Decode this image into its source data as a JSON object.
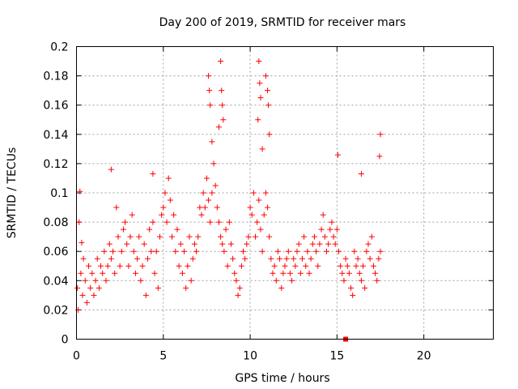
{
  "chart_data": {
    "type": "scatter",
    "title": "Day 200 of 2019, SRMTID for receiver mars",
    "xlabel": "GPS time / hours",
    "ylabel": "SRMTID / TECUs",
    "xlim": [
      0,
      24
    ],
    "ylim": [
      0,
      0.2
    ],
    "xticks": [
      0,
      5,
      10,
      15,
      20
    ],
    "xtick_labels": [
      "0",
      "5",
      "10",
      "15",
      "20"
    ],
    "yticks": [
      0,
      0.02,
      0.04,
      0.06,
      0.08,
      0.1,
      0.12,
      0.14,
      0.16,
      0.18,
      0.2
    ],
    "ytick_labels": [
      "0",
      "0.02",
      "0.04",
      "0.06",
      "0.08",
      "0.1",
      "0.12",
      "0.14",
      "0.16",
      "0.18",
      "0.2"
    ],
    "grid": true,
    "marker": "+",
    "color": "#ff0000",
    "series": [
      {
        "name": "SRMTID",
        "x": [
          0.05,
          0.1,
          0.15,
          0.2,
          0.25,
          0.3,
          0.35,
          0.4,
          0.5,
          0.6,
          0.7,
          0.8,
          0.9,
          1.0,
          1.1,
          1.2,
          1.3,
          1.4,
          1.5,
          1.6,
          1.7,
          1.8,
          1.9,
          2.0,
          2.1,
          2.2,
          2.3,
          2.4,
          2.5,
          2.6,
          2.7,
          2.8,
          2.9,
          3.0,
          3.1,
          3.2,
          3.3,
          3.4,
          3.5,
          3.6,
          3.7,
          3.8,
          3.9,
          4.0,
          4.1,
          4.2,
          4.3,
          4.4,
          4.5,
          4.6,
          4.7,
          4.8,
          4.9,
          5.0,
          5.1,
          5.2,
          5.3,
          5.4,
          5.5,
          5.6,
          5.7,
          5.8,
          5.9,
          6.0,
          6.1,
          6.2,
          6.3,
          6.4,
          6.5,
          6.6,
          6.7,
          6.8,
          6.9,
          7.0,
          7.1,
          7.2,
          7.3,
          7.4,
          7.5,
          7.6,
          7.7,
          7.8,
          7.9,
          8.0,
          8.1,
          8.2,
          8.3,
          8.4,
          8.5,
          8.6,
          8.7,
          8.8,
          8.9,
          9.0,
          9.1,
          9.2,
          9.3,
          9.4,
          9.5,
          9.6,
          9.7,
          9.8,
          9.9,
          10.0,
          10.1,
          10.2,
          10.3,
          10.4,
          10.5,
          10.6,
          10.7,
          10.8,
          10.9,
          11.0,
          11.1,
          11.2,
          11.3,
          11.4,
          11.5,
          11.6,
          11.7,
          11.8,
          11.9,
          12.0,
          12.1,
          12.2,
          12.3,
          12.4,
          12.5,
          12.6,
          12.7,
          12.8,
          12.9,
          13.0,
          13.1,
          13.2,
          13.3,
          13.4,
          13.5,
          13.6,
          13.7,
          13.8,
          13.9,
          14.0,
          14.1,
          14.2,
          14.3,
          14.4,
          14.5,
          14.6,
          14.7,
          14.8,
          14.9,
          15.0,
          15.1,
          15.2,
          15.3,
          15.4,
          15.5,
          15.6,
          15.7,
          15.8,
          15.9,
          16.0,
          16.1,
          16.2,
          16.3,
          16.4,
          16.5,
          16.6,
          16.7,
          16.8,
          16.9,
          17.0,
          17.1,
          17.2,
          17.3,
          17.4,
          17.5,
          7.6,
          7.65,
          7.7,
          8.3,
          8.35,
          8.4,
          10.5,
          10.55,
          10.6,
          10.9,
          11.0,
          11.05,
          7.8,
          8.2,
          10.7,
          11.1,
          17.5,
          17.45,
          15.05,
          16.4,
          2.0,
          4.4,
          8.45,
          10.45
        ],
        "y": [
          0.035,
          0.02,
          0.08,
          0.101,
          0.045,
          0.066,
          0.03,
          0.055,
          0.04,
          0.025,
          0.05,
          0.035,
          0.045,
          0.03,
          0.04,
          0.055,
          0.035,
          0.05,
          0.045,
          0.06,
          0.04,
          0.05,
          0.065,
          0.055,
          0.06,
          0.045,
          0.09,
          0.07,
          0.05,
          0.06,
          0.075,
          0.08,
          0.065,
          0.05,
          0.07,
          0.085,
          0.06,
          0.045,
          0.055,
          0.07,
          0.04,
          0.05,
          0.065,
          0.03,
          0.055,
          0.075,
          0.06,
          0.08,
          0.045,
          0.06,
          0.035,
          0.07,
          0.085,
          0.09,
          0.1,
          0.08,
          0.11,
          0.095,
          0.07,
          0.085,
          0.06,
          0.075,
          0.05,
          0.065,
          0.045,
          0.06,
          0.035,
          0.05,
          0.07,
          0.04,
          0.055,
          0.065,
          0.06,
          0.07,
          0.09,
          0.085,
          0.1,
          0.09,
          0.11,
          0.095,
          0.08,
          0.1,
          0.12,
          0.105,
          0.09,
          0.08,
          0.07,
          0.065,
          0.06,
          0.075,
          0.05,
          0.08,
          0.065,
          0.055,
          0.045,
          0.04,
          0.03,
          0.035,
          0.05,
          0.06,
          0.055,
          0.065,
          0.07,
          0.09,
          0.085,
          0.1,
          0.07,
          0.08,
          0.095,
          0.075,
          0.06,
          0.085,
          0.1,
          0.09,
          0.07,
          0.055,
          0.045,
          0.05,
          0.04,
          0.06,
          0.055,
          0.035,
          0.045,
          0.05,
          0.055,
          0.06,
          0.045,
          0.04,
          0.055,
          0.05,
          0.06,
          0.065,
          0.045,
          0.055,
          0.07,
          0.05,
          0.06,
          0.045,
          0.055,
          0.065,
          0.07,
          0.06,
          0.05,
          0.065,
          0.075,
          0.085,
          0.07,
          0.06,
          0.065,
          0.075,
          0.08,
          0.07,
          0.065,
          0.075,
          0.06,
          0.05,
          0.045,
          0.04,
          0.055,
          0.05,
          0.045,
          0.035,
          0.03,
          0.06,
          0.05,
          0.055,
          0.045,
          0.04,
          0.05,
          0.035,
          0.06,
          0.065,
          0.055,
          0.07,
          0.05,
          0.045,
          0.04,
          0.055,
          0.06,
          0.18,
          0.17,
          0.16,
          0.19,
          0.17,
          0.16,
          0.19,
          0.175,
          0.165,
          0.18,
          0.17,
          0.16,
          0.135,
          0.145,
          0.13,
          0.14,
          0.14,
          0.125,
          0.126,
          0.113,
          0.116,
          0.113,
          0.15,
          0.15
        ]
      }
    ],
    "annotations": [
      {
        "type": "marker",
        "shape": "square",
        "x": 15.5,
        "y": 0.0
      }
    ]
  }
}
